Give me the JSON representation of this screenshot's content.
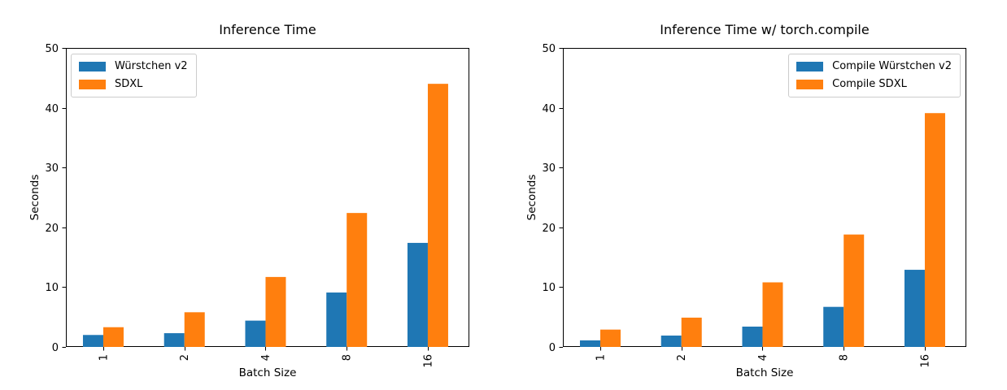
{
  "figure": {
    "background": "#ffffff",
    "axis_color": "#000000",
    "text_color": "#000000"
  },
  "chart_data": [
    {
      "type": "bar",
      "title": "Inference Time",
      "xlabel": "Batch Size",
      "ylabel": "Seconds",
      "categories": [
        "1",
        "2",
        "4",
        "8",
        "16"
      ],
      "series": [
        {
          "name": "Würstchen v2",
          "color": "#1f77b4",
          "values": [
            2.0,
            2.3,
            4.4,
            9.1,
            17.4
          ]
        },
        {
          "name": "SDXL",
          "color": "#ff7f0e",
          "values": [
            3.3,
            5.8,
            11.7,
            22.4,
            44.0
          ]
        }
      ],
      "ylim": [
        0,
        50
      ],
      "yticks": [
        0,
        10,
        20,
        30,
        40,
        50
      ],
      "xtick_rotation": 90,
      "legend_position": "upper-left",
      "grid": false
    },
    {
      "type": "bar",
      "title": "Inference Time w/ torch.compile",
      "xlabel": "Batch Size",
      "ylabel": "Seconds",
      "categories": [
        "1",
        "2",
        "4",
        "8",
        "16"
      ],
      "series": [
        {
          "name": "Compile Würstchen v2",
          "color": "#1f77b4",
          "values": [
            1.1,
            1.9,
            3.4,
            6.7,
            12.9
          ]
        },
        {
          "name": "Compile SDXL",
          "color": "#ff7f0e",
          "values": [
            2.9,
            4.9,
            10.8,
            18.8,
            39.1
          ]
        }
      ],
      "ylim": [
        0,
        50
      ],
      "yticks": [
        0,
        10,
        20,
        30,
        40,
        50
      ],
      "xtick_rotation": 90,
      "legend_position": "upper-right",
      "grid": false
    }
  ]
}
